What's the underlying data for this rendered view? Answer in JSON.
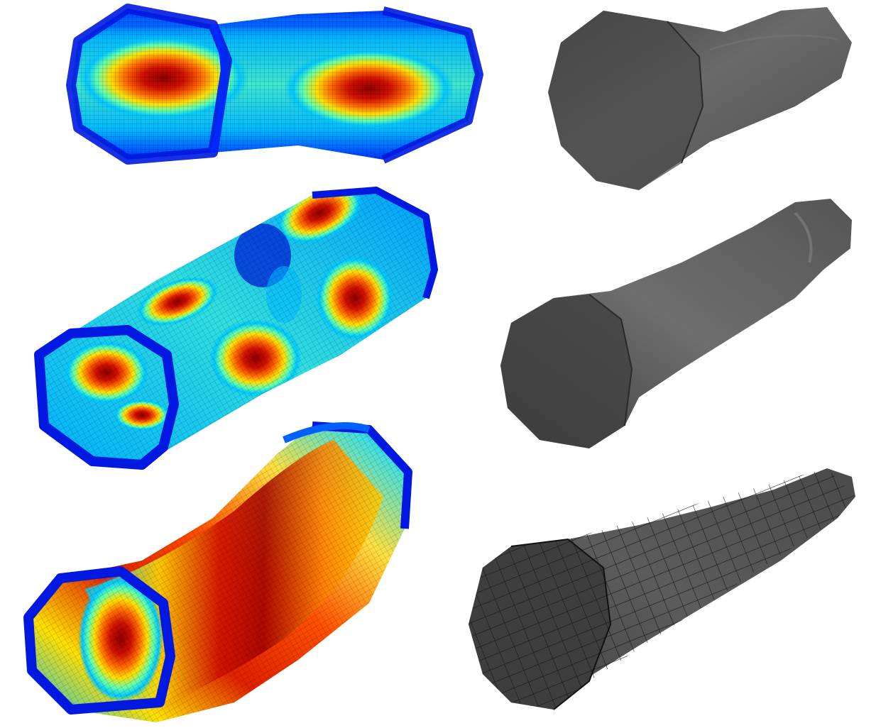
{
  "figure": {
    "colormap": [
      "#00008f",
      "#0000ff",
      "#0070ff",
      "#00d0ff",
      "#40ffc0",
      "#c0ff40",
      "#ffe000",
      "#ff8000",
      "#ff2000",
      "#c00000",
      "#800000"
    ],
    "panels": [
      {
        "name": "left-top-tube",
        "kind": "colormap-mode",
        "mode": "two-lobe",
        "lobes": 2,
        "mesh": "fine"
      },
      {
        "name": "left-middle-tube",
        "kind": "colormap-mode",
        "mode": "multi-lobe",
        "lobes": 6,
        "mesh": "fine"
      },
      {
        "name": "left-bottom-tube",
        "kind": "colormap-mode",
        "mode": "single-band",
        "lobes": 1,
        "mesh": "fine"
      },
      {
        "name": "right-top-tube",
        "kind": "deformed-gray",
        "shade": "#5a5a5a",
        "mesh": "none"
      },
      {
        "name": "right-middle-tube",
        "kind": "deformed-gray",
        "shade": "#5a5a5a",
        "mesh": "none"
      },
      {
        "name": "right-bottom-tube",
        "kind": "gray-mesh",
        "shade": "#555555",
        "mesh": "coarse"
      }
    ]
  }
}
